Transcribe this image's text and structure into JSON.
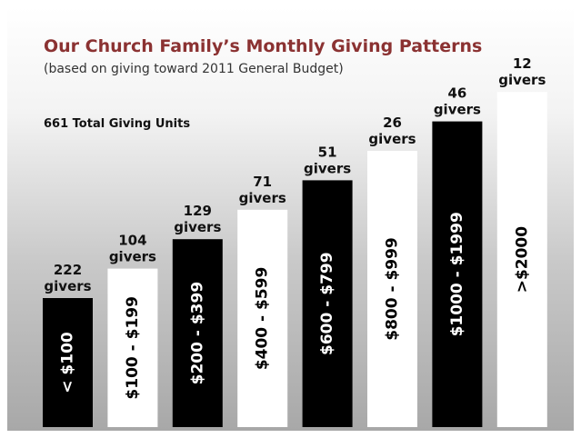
{
  "header": {
    "title": "Our Church Family’s Monthly Giving Patterns",
    "subtitle": "(based on giving toward 2011 General Budget)",
    "total": "661 Total Giving Units"
  },
  "bars": [
    {
      "range": "< $100",
      "count": "222",
      "unit": "givers"
    },
    {
      "range": "$100 - $199",
      "count": "104",
      "unit": "givers"
    },
    {
      "range": "$200 - $399",
      "count": "129",
      "unit": "givers"
    },
    {
      "range": "$400 - $599",
      "count": "71",
      "unit": "givers"
    },
    {
      "range": "$600 - $799",
      "count": "51",
      "unit": "givers"
    },
    {
      "range": "$800 - $999",
      "count": "26",
      "unit": "givers"
    },
    {
      "range": "$1000 - $1999",
      "count": "46",
      "unit": "givers"
    },
    {
      "range": ">$2000",
      "count": "12",
      "unit": "givers"
    }
  ]
}
